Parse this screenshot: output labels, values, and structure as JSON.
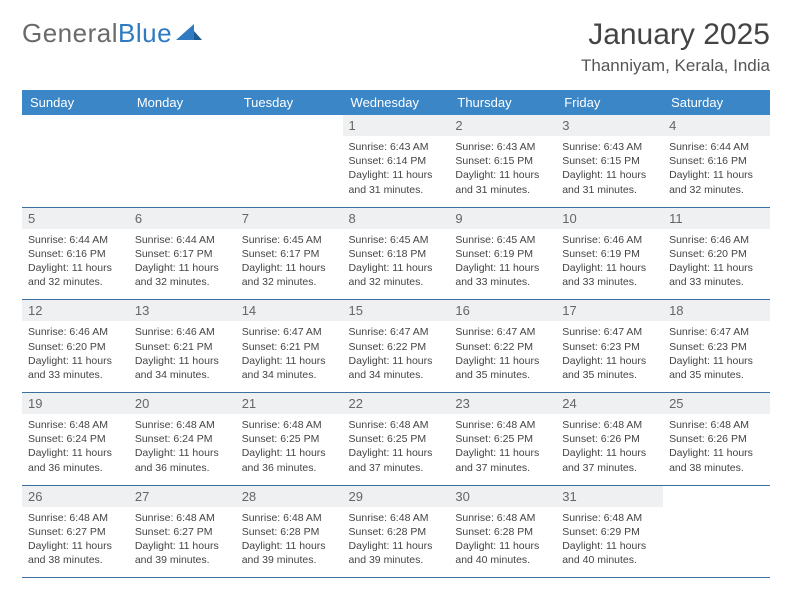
{
  "brand": {
    "general": "General",
    "blue": "Blue"
  },
  "title": {
    "month": "January 2025",
    "location": "Thanniyam, Kerala, India"
  },
  "headerColor": "#3b86c7",
  "dayNames": [
    "Sunday",
    "Monday",
    "Tuesday",
    "Wednesday",
    "Thursday",
    "Friday",
    "Saturday"
  ],
  "weeks": [
    [
      {
        "blank": true
      },
      {
        "blank": true
      },
      {
        "blank": true
      },
      {
        "num": "1",
        "sunrise": "6:43 AM",
        "sunset": "6:14 PM",
        "daylight": "11 hours and 31 minutes."
      },
      {
        "num": "2",
        "sunrise": "6:43 AM",
        "sunset": "6:15 PM",
        "daylight": "11 hours and 31 minutes."
      },
      {
        "num": "3",
        "sunrise": "6:43 AM",
        "sunset": "6:15 PM",
        "daylight": "11 hours and 31 minutes."
      },
      {
        "num": "4",
        "sunrise": "6:44 AM",
        "sunset": "6:16 PM",
        "daylight": "11 hours and 32 minutes."
      }
    ],
    [
      {
        "num": "5",
        "sunrise": "6:44 AM",
        "sunset": "6:16 PM",
        "daylight": "11 hours and 32 minutes."
      },
      {
        "num": "6",
        "sunrise": "6:44 AM",
        "sunset": "6:17 PM",
        "daylight": "11 hours and 32 minutes."
      },
      {
        "num": "7",
        "sunrise": "6:45 AM",
        "sunset": "6:17 PM",
        "daylight": "11 hours and 32 minutes."
      },
      {
        "num": "8",
        "sunrise": "6:45 AM",
        "sunset": "6:18 PM",
        "daylight": "11 hours and 32 minutes."
      },
      {
        "num": "9",
        "sunrise": "6:45 AM",
        "sunset": "6:19 PM",
        "daylight": "11 hours and 33 minutes."
      },
      {
        "num": "10",
        "sunrise": "6:46 AM",
        "sunset": "6:19 PM",
        "daylight": "11 hours and 33 minutes."
      },
      {
        "num": "11",
        "sunrise": "6:46 AM",
        "sunset": "6:20 PM",
        "daylight": "11 hours and 33 minutes."
      }
    ],
    [
      {
        "num": "12",
        "sunrise": "6:46 AM",
        "sunset": "6:20 PM",
        "daylight": "11 hours and 33 minutes."
      },
      {
        "num": "13",
        "sunrise": "6:46 AM",
        "sunset": "6:21 PM",
        "daylight": "11 hours and 34 minutes."
      },
      {
        "num": "14",
        "sunrise": "6:47 AM",
        "sunset": "6:21 PM",
        "daylight": "11 hours and 34 minutes."
      },
      {
        "num": "15",
        "sunrise": "6:47 AM",
        "sunset": "6:22 PM",
        "daylight": "11 hours and 34 minutes."
      },
      {
        "num": "16",
        "sunrise": "6:47 AM",
        "sunset": "6:22 PM",
        "daylight": "11 hours and 35 minutes."
      },
      {
        "num": "17",
        "sunrise": "6:47 AM",
        "sunset": "6:23 PM",
        "daylight": "11 hours and 35 minutes."
      },
      {
        "num": "18",
        "sunrise": "6:47 AM",
        "sunset": "6:23 PM",
        "daylight": "11 hours and 35 minutes."
      }
    ],
    [
      {
        "num": "19",
        "sunrise": "6:48 AM",
        "sunset": "6:24 PM",
        "daylight": "11 hours and 36 minutes."
      },
      {
        "num": "20",
        "sunrise": "6:48 AM",
        "sunset": "6:24 PM",
        "daylight": "11 hours and 36 minutes."
      },
      {
        "num": "21",
        "sunrise": "6:48 AM",
        "sunset": "6:25 PM",
        "daylight": "11 hours and 36 minutes."
      },
      {
        "num": "22",
        "sunrise": "6:48 AM",
        "sunset": "6:25 PM",
        "daylight": "11 hours and 37 minutes."
      },
      {
        "num": "23",
        "sunrise": "6:48 AM",
        "sunset": "6:25 PM",
        "daylight": "11 hours and 37 minutes."
      },
      {
        "num": "24",
        "sunrise": "6:48 AM",
        "sunset": "6:26 PM",
        "daylight": "11 hours and 37 minutes."
      },
      {
        "num": "25",
        "sunrise": "6:48 AM",
        "sunset": "6:26 PM",
        "daylight": "11 hours and 38 minutes."
      }
    ],
    [
      {
        "num": "26",
        "sunrise": "6:48 AM",
        "sunset": "6:27 PM",
        "daylight": "11 hours and 38 minutes."
      },
      {
        "num": "27",
        "sunrise": "6:48 AM",
        "sunset": "6:27 PM",
        "daylight": "11 hours and 39 minutes."
      },
      {
        "num": "28",
        "sunrise": "6:48 AM",
        "sunset": "6:28 PM",
        "daylight": "11 hours and 39 minutes."
      },
      {
        "num": "29",
        "sunrise": "6:48 AM",
        "sunset": "6:28 PM",
        "daylight": "11 hours and 39 minutes."
      },
      {
        "num": "30",
        "sunrise": "6:48 AM",
        "sunset": "6:28 PM",
        "daylight": "11 hours and 40 minutes."
      },
      {
        "num": "31",
        "sunrise": "6:48 AM",
        "sunset": "6:29 PM",
        "daylight": "11 hours and 40 minutes."
      },
      {
        "blank": true
      }
    ]
  ]
}
